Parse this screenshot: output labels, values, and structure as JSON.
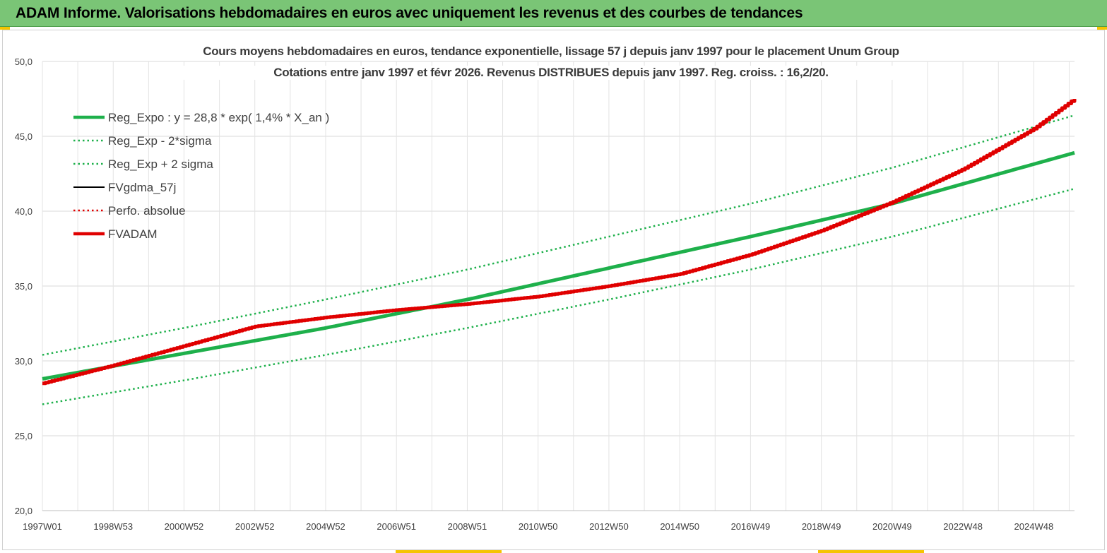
{
  "banner": {
    "title": "ADAM Informe. Valorisations hebdomadaires en euros avec uniquement les revenus et des courbes de tendances"
  },
  "colors": {
    "banner_bg": "#7ac576",
    "reg_expo": "#1eb04b",
    "fvadam": "#e00000",
    "fvgdma": "#000000",
    "perfo": "#e00000",
    "grid": "#d9d9d9"
  },
  "chart_data": {
    "type": "line",
    "title": "Cours moyens hebdomadaires en euros, tendance exponentielle, lissage 57 j depuis janv 1997 pour le placement Unum Group",
    "subtitle": "Cotations entre janv 1997 et févr 2026. Revenus DISTRIBUES depuis janv 1997. Reg. croiss. : 16,2/20.",
    "ylim": [
      20,
      50
    ],
    "yticks": [
      "20,0",
      "25,0",
      "30,0",
      "35,0",
      "40,0",
      "45,0",
      "50,0"
    ],
    "x_range_years": [
      1997.0,
      2026.15
    ],
    "xticks": [
      {
        "label": "1997W01",
        "year": 1997.0
      },
      {
        "label": "1998W53",
        "year": 1999.0
      },
      {
        "label": "2000W52",
        "year": 2001.0
      },
      {
        "label": "2002W52",
        "year": 2003.0
      },
      {
        "label": "2004W52",
        "year": 2005.0
      },
      {
        "label": "2006W51",
        "year": 2007.0
      },
      {
        "label": "2008W51",
        "year": 2009.0
      },
      {
        "label": "2010W50",
        "year": 2011.0
      },
      {
        "label": "2012W50",
        "year": 2013.0
      },
      {
        "label": "2014W50",
        "year": 2015.0
      },
      {
        "label": "2016W49",
        "year": 2017.0
      },
      {
        "label": "2018W49",
        "year": 2019.0
      },
      {
        "label": "2020W49",
        "year": 2021.0
      },
      {
        "label": "2022W48",
        "year": 2023.0
      },
      {
        "label": "2024W48",
        "year": 2025.0
      }
    ],
    "legend_position": "top-left",
    "series": [
      {
        "name": "Reg_Expo : y = 28,8 * exp( 1,4% *  X_an )",
        "style": "solid-thick",
        "color": "#1eb04b",
        "points": [
          [
            1997.0,
            28.8
          ],
          [
            2001.0,
            30.5
          ],
          [
            2005.0,
            32.2
          ],
          [
            2009.0,
            34.1
          ],
          [
            2013.0,
            36.2
          ],
          [
            2017.0,
            38.3
          ],
          [
            2021.0,
            40.5
          ],
          [
            2026.15,
            43.9
          ]
        ]
      },
      {
        "name": "Reg_Exp - 2*sigma",
        "style": "dotted",
        "color": "#1eb04b",
        "points": [
          [
            1997.0,
            27.1
          ],
          [
            2001.0,
            28.7
          ],
          [
            2005.0,
            30.4
          ],
          [
            2009.0,
            32.2
          ],
          [
            2013.0,
            34.1
          ],
          [
            2017.0,
            36.1
          ],
          [
            2021.0,
            38.3
          ],
          [
            2026.15,
            41.5
          ]
        ]
      },
      {
        "name": "Reg_Exp + 2 sigma",
        "style": "dotted",
        "color": "#1eb04b",
        "points": [
          [
            1997.0,
            30.4
          ],
          [
            2001.0,
            32.2
          ],
          [
            2005.0,
            34.1
          ],
          [
            2009.0,
            36.1
          ],
          [
            2013.0,
            38.3
          ],
          [
            2017.0,
            40.5
          ],
          [
            2021.0,
            42.9
          ],
          [
            2026.15,
            46.4
          ]
        ]
      },
      {
        "name": "FVgdma_57j",
        "style": "solid",
        "color": "#000000",
        "points": []
      },
      {
        "name": "Perfo. absolue",
        "style": "dotted",
        "color": "#e00000",
        "points": []
      },
      {
        "name": "FVADAM",
        "style": "solid-thick",
        "color": "#e00000",
        "points": [
          [
            1997.0,
            28.5
          ],
          [
            1999.0,
            29.7
          ],
          [
            2001.0,
            31.0
          ],
          [
            2003.0,
            32.3
          ],
          [
            2005.0,
            32.9
          ],
          [
            2007.0,
            33.4
          ],
          [
            2009.0,
            33.8
          ],
          [
            2011.0,
            34.3
          ],
          [
            2013.0,
            35.0
          ],
          [
            2015.0,
            35.8
          ],
          [
            2017.0,
            37.1
          ],
          [
            2019.0,
            38.7
          ],
          [
            2021.0,
            40.6
          ],
          [
            2023.0,
            42.8
          ],
          [
            2025.0,
            45.5
          ],
          [
            2026.15,
            47.5
          ]
        ]
      }
    ]
  }
}
